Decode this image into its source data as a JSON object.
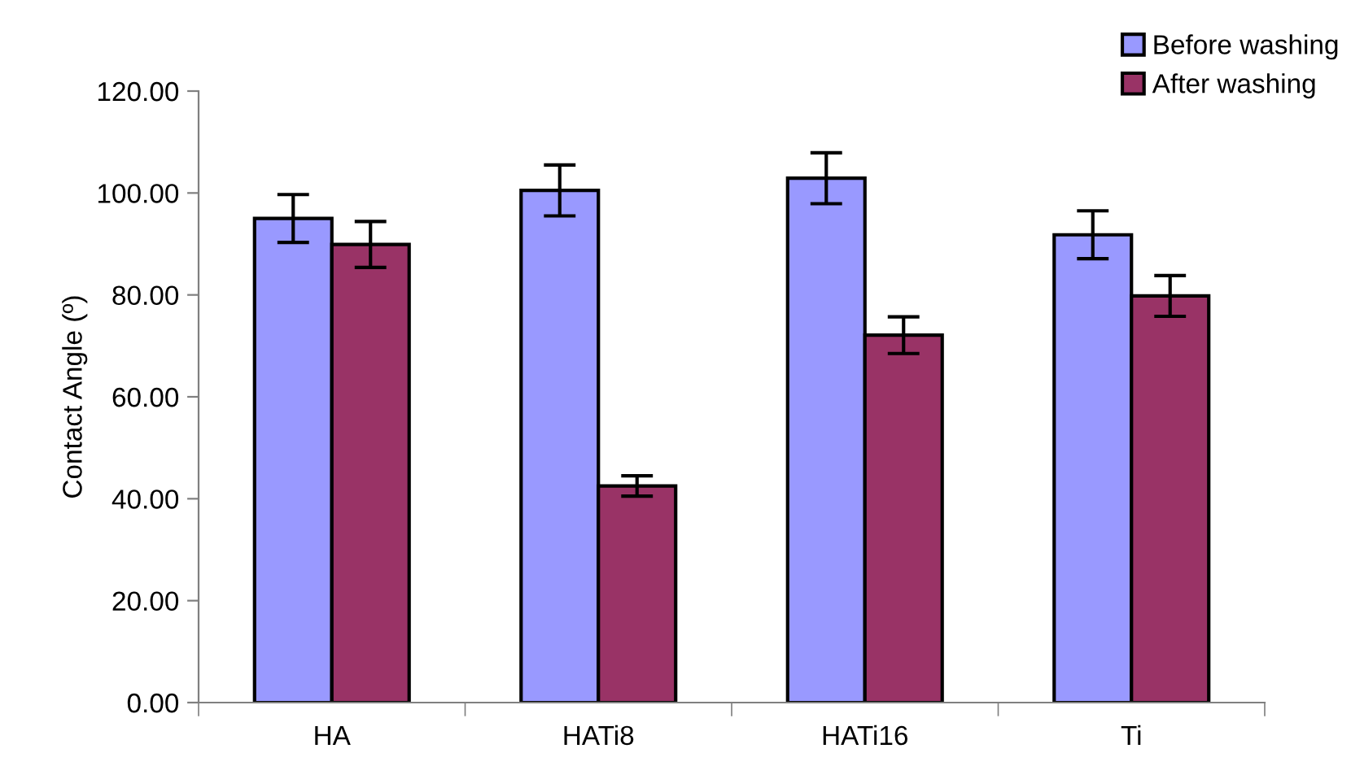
{
  "chart_data": {
    "type": "bar",
    "ylabel": "Contact Angle (º)",
    "categories": [
      "HA",
      "HATi8",
      "HATi16",
      "Ti"
    ],
    "series": [
      {
        "name": "Before washing",
        "color": "#9999ff",
        "values": [
          95.0,
          100.5,
          102.9,
          91.8
        ],
        "errors": [
          4.7,
          5.0,
          5.0,
          4.7
        ]
      },
      {
        "name": "After washing",
        "color": "#993366",
        "values": [
          89.9,
          42.5,
          72.1,
          79.8
        ],
        "errors": [
          4.5,
          2.0,
          3.6,
          4.0
        ]
      }
    ],
    "ylim": [
      0,
      120
    ],
    "yticks": [
      {
        "value": 0,
        "label": "0.00"
      },
      {
        "value": 20,
        "label": "20.00"
      },
      {
        "value": 40,
        "label": "40.00"
      },
      {
        "value": 60,
        "label": "60.00"
      },
      {
        "value": 80,
        "label": "80.00"
      },
      {
        "value": 100,
        "label": "100.00"
      },
      {
        "value": 120,
        "label": "120.00"
      }
    ],
    "grid": false,
    "legend": "top right"
  }
}
